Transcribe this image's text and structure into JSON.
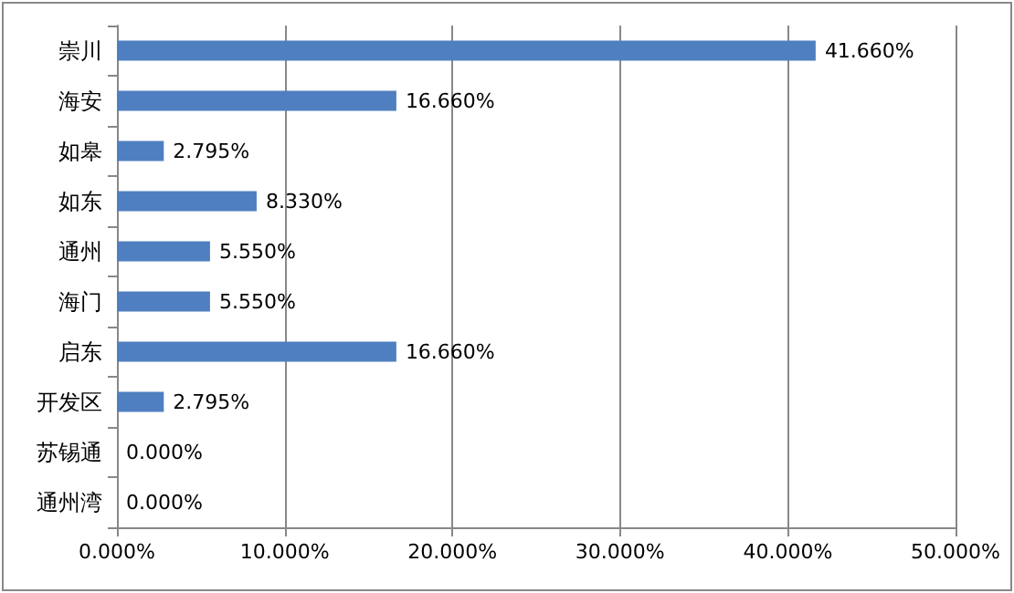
{
  "chart_data": {
    "type": "bar",
    "orientation": "horizontal",
    "categories": [
      "崇川",
      "海安",
      "如皋",
      "如东",
      "通州",
      "海门",
      "启东",
      "开发区",
      "苏锡通",
      "通州湾"
    ],
    "values": [
      41.66,
      16.66,
      2.795,
      8.33,
      5.55,
      5.55,
      16.66,
      2.795,
      0,
      0
    ],
    "value_labels": [
      "41.660%",
      "16.660%",
      "2.795%",
      "8.330%",
      "5.550%",
      "5.550%",
      "16.660%",
      "2.795%",
      "0.000%",
      "0.000%"
    ],
    "color": "#4f7fc0",
    "xlim": [
      0,
      50
    ],
    "xticks": [
      {
        "value": 0,
        "label": "0.000%"
      },
      {
        "value": 10,
        "label": "10.000%"
      },
      {
        "value": 20,
        "label": "20.000%"
      },
      {
        "value": 30,
        "label": "30.000%"
      },
      {
        "value": 40,
        "label": "40.000%"
      },
      {
        "value": 50,
        "label": "50.000%"
      }
    ],
    "grid": "x"
  }
}
